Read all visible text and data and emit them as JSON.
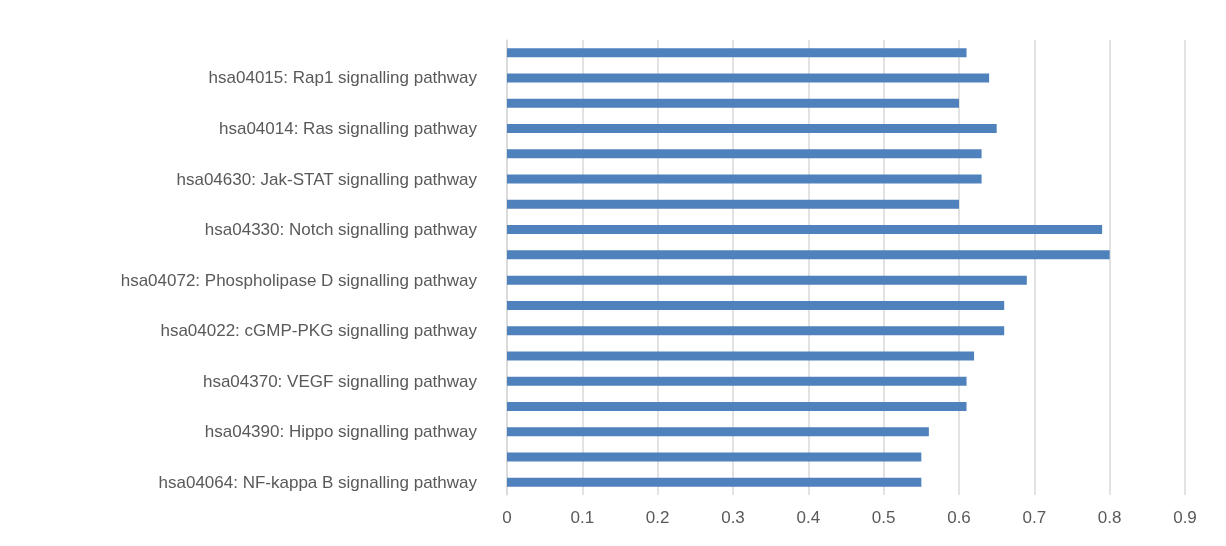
{
  "chart_data": {
    "type": "bar",
    "orientation": "horizontal",
    "categories": [
      null,
      "hsa04015: Rap1 signalling pathway",
      null,
      "hsa04014: Ras signalling pathway",
      null,
      "hsa04630: Jak-STAT signalling pathway",
      null,
      "hsa04330: Notch signalling pathway",
      null,
      "hsa04072: Phospholipase D signalling pathway",
      null,
      "hsa04022: cGMP-PKG signalling pathway",
      null,
      "hsa04370: VEGF signalling pathway",
      null,
      "hsa04390: Hippo signalling pathway",
      null,
      "hsa04064: NF-kappa B signalling pathway"
    ],
    "values": [
      0.61,
      0.64,
      0.6,
      0.65,
      0.63,
      0.63,
      0.6,
      0.79,
      0.8,
      0.69,
      0.66,
      0.66,
      0.62,
      0.61,
      0.61,
      0.56,
      0.55,
      0.55
    ],
    "color": "#4f81bd",
    "xlim": [
      0,
      0.9
    ],
    "xticks": [
      0,
      0.1,
      0.2,
      0.3,
      0.4,
      0.5,
      0.6,
      0.7,
      0.8,
      0.9
    ],
    "grid": "x"
  }
}
